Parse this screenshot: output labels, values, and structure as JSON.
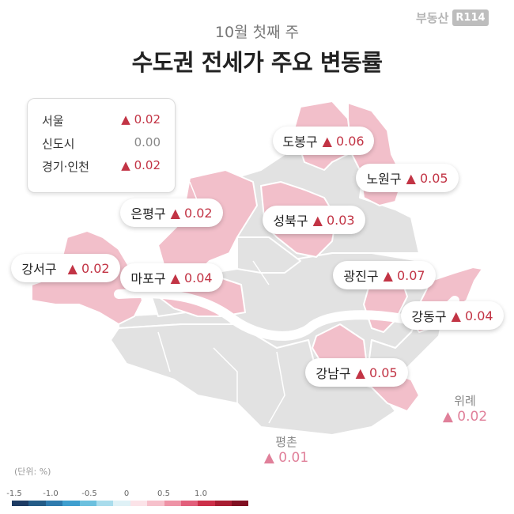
{
  "subtitle": "10월 첫째 주",
  "title": "수도권 전세가 주요 변동률",
  "logo": {
    "text": "부동산",
    "badge": "R114"
  },
  "summary": [
    {
      "label": "서울",
      "value": "▲ 0.02",
      "trend": "up"
    },
    {
      "label": "신도시",
      "value": "0.00",
      "trend": "flat"
    },
    {
      "label": "경기·인천",
      "value": "▲ 0.02",
      "trend": "up"
    }
  ],
  "districts": [
    {
      "name": "도봉구",
      "value": "▲ 0.06"
    },
    {
      "name": "노원구",
      "value": "▲ 0.05"
    },
    {
      "name": "은평구",
      "value": "▲ 0.02"
    },
    {
      "name": "성북구",
      "value": "▲ 0.03"
    },
    {
      "name": "강서구",
      "value": "▲ 0.02"
    },
    {
      "name": "마포구",
      "value": "▲ 0.04"
    },
    {
      "name": "광진구",
      "value": "▲ 0.07"
    },
    {
      "name": "강동구",
      "value": "▲ 0.04"
    },
    {
      "name": "강남구",
      "value": "▲ 0.05"
    }
  ],
  "outer": [
    {
      "name": "위례",
      "value": "▲ 0.02"
    },
    {
      "name": "평촌",
      "value": "▲ 0.01"
    }
  ],
  "unit_label": "(단위: %)",
  "scale": {
    "ticks": [
      "-1.5",
      "-1.0",
      "-0.5",
      "0",
      "0.5",
      "1.0"
    ],
    "colors": [
      "#1d3b63",
      "#245c87",
      "#2f7bae",
      "#3f9fcf",
      "#6cc0de",
      "#a9dcec",
      "#dff1f6",
      "#fbe3e8",
      "#f6c0cb",
      "#ee93a6",
      "#e25f7b",
      "#cc2f49",
      "#a81d32",
      "#801022"
    ]
  },
  "colors": {
    "raised": "#f2bfca",
    "neutral": "#e2e2e2",
    "accent": "#c23445"
  }
}
